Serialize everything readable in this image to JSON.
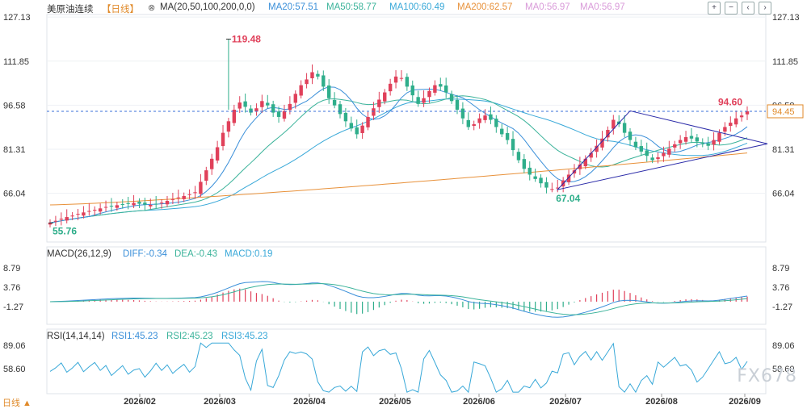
{
  "header": {
    "symbol": "美原油连续",
    "period": "【日线】",
    "ma_label": "MA(20,50,100,200,0,0)",
    "ma_values": [
      {
        "text": "MA20:57.51",
        "color": "#3a8fd9"
      },
      {
        "text": "MA50:58.77",
        "color": "#3bb39a"
      },
      {
        "text": "MA100:60.49",
        "color": "#38a8d8"
      },
      {
        "text": "MA200:62.57",
        "color": "#e8913a"
      },
      {
        "text": "MA0:56.97",
        "color": "#d99ad9"
      },
      {
        "text": "MA0:56.97",
        "color": "#d99ad9"
      }
    ]
  },
  "macd": {
    "label": "MACD(26,12,9)",
    "diff": "DIFF:-0.34",
    "dea": "DEA:-0.43",
    "macd": "MACD:0.19",
    "ticks": [
      "8.79",
      "3.76",
      "-1.27"
    ]
  },
  "rsi": {
    "label": "RSI(14,14,14)",
    "rsi1": "RSI1:45.23",
    "rsi2": "RSI2:45.23",
    "rsi3": "RSI3:45.23",
    "ticks": [
      "89.06",
      "58.60"
    ]
  },
  "bottom_left": "日线 ▲",
  "watermark": "FX678",
  "colors": {
    "up": "#e0405a",
    "down": "#2fae8b",
    "ma20": "#3a8fd9",
    "ma50": "#3bb39a",
    "ma100": "#38a8d8",
    "ma200": "#e8913a",
    "triangle": "#2a2aa8"
  },
  "chart_data": {
    "type": "candlestick",
    "instrument": "美原油连续",
    "period": "日线",
    "y_ticks": [
      127.13,
      111.85,
      96.58,
      81.31,
      66.04
    ],
    "x_ticks": [
      "2026/02",
      "2026/03",
      "2026/04",
      "2026/05",
      "2026/06",
      "2026/07",
      "2026/08",
      "2026/09"
    ],
    "ylim": [
      52.5,
      128
    ],
    "annotations": [
      {
        "text": "119.48",
        "value": 119.48
      },
      {
        "text": "55.76",
        "value": 55.76
      },
      {
        "text": "67.04",
        "value": 67.04
      },
      {
        "text": "94.60",
        "value": 94.6
      }
    ],
    "last_price": 94.45,
    "reference_line": 94.45,
    "closes": [
      55.8,
      56.5,
      57.2,
      57.8,
      58.3,
      58.9,
      59.4,
      59.9,
      60.3,
      60.8,
      61.3,
      61.6,
      61.9,
      62.2,
      62.5,
      62.7,
      62.4,
      62.1,
      62.0,
      62.3,
      62.8,
      63.4,
      64.0,
      64.6,
      65.1,
      65.7,
      66.4,
      70.0,
      74.0,
      78.0,
      82.0,
      87.0,
      91.0,
      95.0,
      97.5,
      96.0,
      94.0,
      95.5,
      98.0,
      96.5,
      94.0,
      92.5,
      94.5,
      97.0,
      100.5,
      103.5,
      105.5,
      108.0,
      106.5,
      103.0,
      99.0,
      96.5,
      93.5,
      91.0,
      88.5,
      86.5,
      89.5,
      92.5,
      95.5,
      98.5,
      101.0,
      104.0,
      106.5,
      106.0,
      103.0,
      100.0,
      97.0,
      99.0,
      101.5,
      103.5,
      103.0,
      101.0,
      98.0,
      95.0,
      92.0,
      89.0,
      90.0,
      92.0,
      93.0,
      91.5,
      89.0,
      86.5,
      84.5,
      81.0,
      77.5,
      74.5,
      72.5,
      71.0,
      69.5,
      68.0,
      67.5,
      68.0,
      70.5,
      72.5,
      74.0,
      76.0,
      78.0,
      80.0,
      82.5,
      85.0,
      88.0,
      91.5,
      90.0,
      87.0,
      84.5,
      82.0,
      80.5,
      79.0,
      77.5,
      78.5,
      80.0,
      81.5,
      83.0,
      84.5,
      85.5,
      85.0,
      84.0,
      83.0,
      82.5,
      84.5,
      87.0,
      89.0,
      90.5,
      92.0,
      93.0,
      94.45
    ],
    "ma_series": [
      "MA20",
      "MA50",
      "MA100",
      "MA200"
    ],
    "panels": [
      {
        "name": "MACD",
        "params": "26,12,9",
        "DIFF": -0.34,
        "DEA": -0.43,
        "MACD": 0.19,
        "y_ticks": [
          8.79,
          3.76,
          -1.27
        ]
      },
      {
        "name": "RSI",
        "params": "14,14,14",
        "RSI1": 45.23,
        "RSI2": 45.23,
        "RSI3": 45.23,
        "y_ticks": [
          89.06,
          58.6
        ]
      }
    ]
  }
}
